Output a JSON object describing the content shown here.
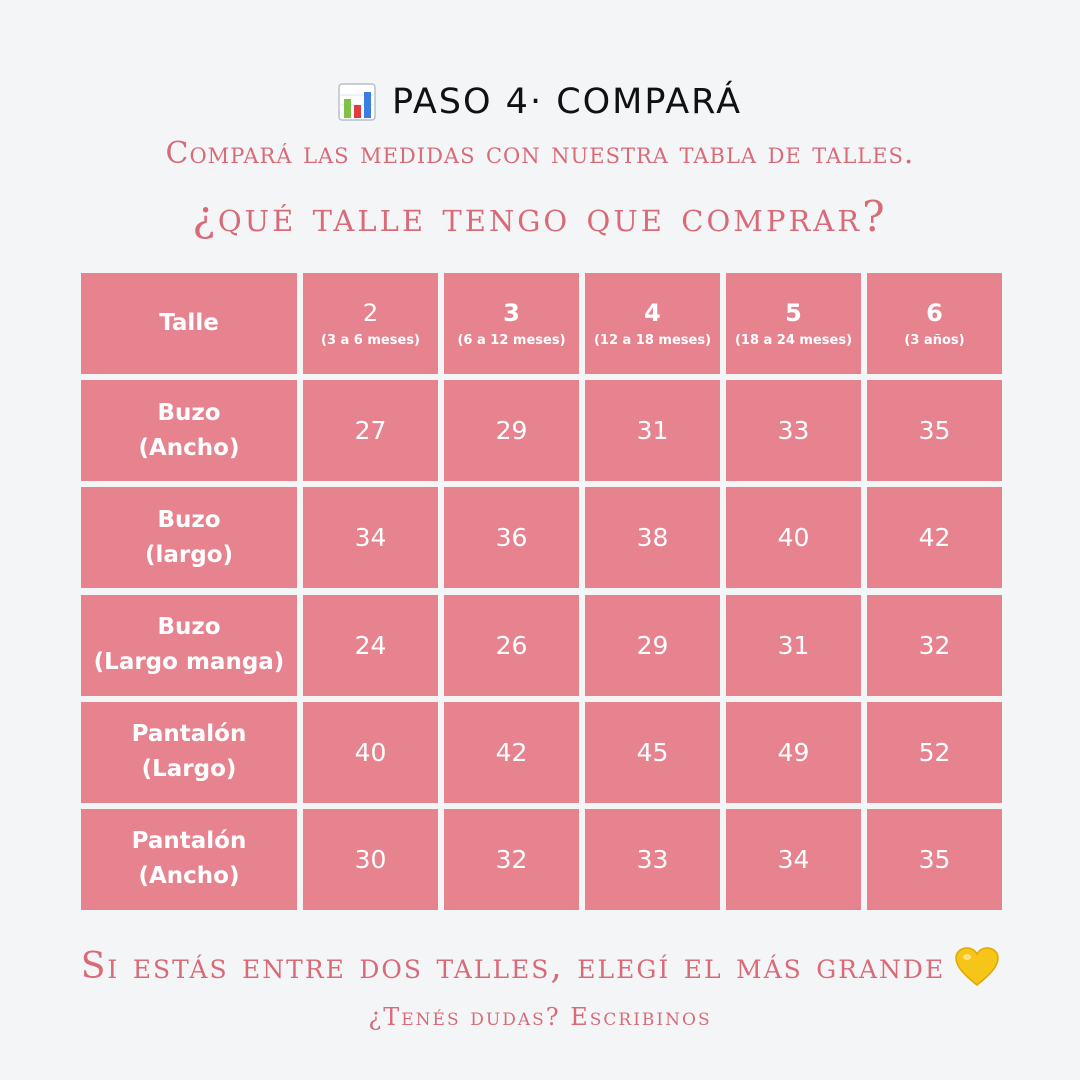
{
  "header": {
    "icon": "bar-chart-icon",
    "title": "PASO 4· COMPARÁ",
    "subtitle": "Compará las medidas con nuestra tabla de talles.",
    "question": "¿Qué talle tengo que comprar?"
  },
  "table": {
    "corner_label": "Talle",
    "sizes": [
      {
        "num": "2",
        "age": "(3 a 6 meses)"
      },
      {
        "num": "3",
        "age": "(6 a 12 meses)"
      },
      {
        "num": "4",
        "age": "(12 a 18 meses)"
      },
      {
        "num": "5",
        "age": "(18 a 24 meses)"
      },
      {
        "num": "6",
        "age": "(3 años)"
      }
    ],
    "rows": [
      {
        "line1": "Buzo",
        "line2": "(Ancho)",
        "values": [
          "27",
          "29",
          "31",
          "33",
          "35"
        ]
      },
      {
        "line1": "Buzo",
        "line2": "(largo)",
        "values": [
          "34",
          "36",
          "38",
          "40",
          "42"
        ]
      },
      {
        "line1": "Buzo",
        "line2": "(Largo manga)",
        "values": [
          "24",
          "26",
          "29",
          "31",
          "32"
        ]
      },
      {
        "line1": "Pantalón",
        "line2": "(Largo)",
        "values": [
          "40",
          "42",
          "45",
          "49",
          "52"
        ]
      },
      {
        "line1": "Pantalón",
        "line2": "(Ancho)",
        "values": [
          "30",
          "32",
          "33",
          "34",
          "35"
        ]
      }
    ]
  },
  "footer": {
    "tip": "Si estás entre dos talles, elegí el más grande",
    "tip_icon": "yellow-heart-icon",
    "contact": "¿Tenés dudas? Escribinos"
  },
  "colors": {
    "background": "#f4f5f7",
    "cell": "#e7828f",
    "accent_text": "#d96a78",
    "heart": "#f5c518"
  }
}
